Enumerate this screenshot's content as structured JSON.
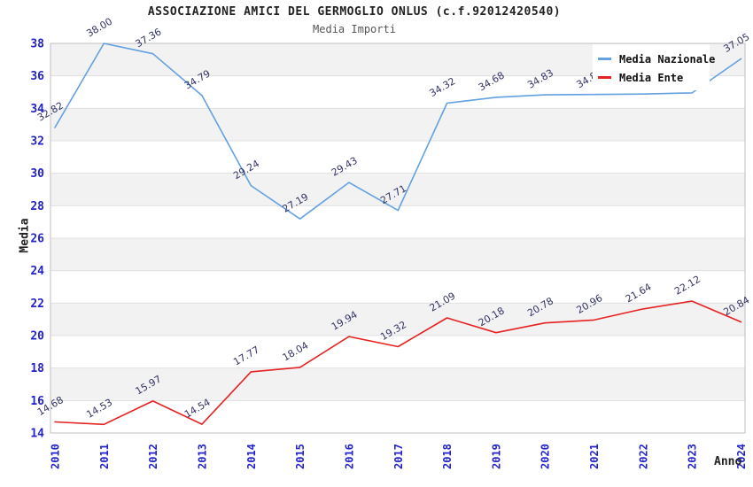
{
  "colors": {
    "nazionale_line": "#63a0e0",
    "ente_line": "#e62222",
    "axis_tick_text": "#2222cc",
    "value_label_text": "#333366",
    "band_fill": "#f2f2f2",
    "grid_line": "#e0e0e0",
    "plot_border": "#bfbfbf",
    "legend_background": "#ffffff"
  },
  "chart_data": {
    "type": "line",
    "title": "ASSOCIAZIONE AMICI DEL GERMOGLIO ONLUS (c.f.92012420540)",
    "subtitle": "Media Importi",
    "xlabel": "Anno",
    "ylabel": "Media",
    "x": [
      "2010",
      "2011",
      "2012",
      "2013",
      "2014",
      "2015",
      "2016",
      "2017",
      "2018",
      "2019",
      "2020",
      "2021",
      "2022",
      "2023",
      "2024"
    ],
    "series": [
      {
        "name": "Media Nazionale",
        "color": "#63a0e0",
        "values": [
          32.82,
          38.0,
          37.36,
          34.79,
          29.24,
          27.19,
          29.43,
          27.71,
          34.32,
          34.68,
          34.83,
          34.85,
          34.88,
          34.95,
          37.05
        ]
      },
      {
        "name": "Media Ente",
        "color": "#e62222",
        "values": [
          14.68,
          14.53,
          15.97,
          14.54,
          17.77,
          18.04,
          19.94,
          19.32,
          21.09,
          20.18,
          20.78,
          20.96,
          21.64,
          22.12,
          20.84
        ]
      }
    ],
    "ylim": [
      14,
      38
    ],
    "ytick_step": 2,
    "yticks": [
      38,
      36,
      34,
      32,
      30,
      28,
      26,
      24,
      22,
      20,
      18,
      16,
      14
    ],
    "legend_position": "top-right",
    "grid": "horizontal-bands",
    "value_label_decimals": 2
  }
}
